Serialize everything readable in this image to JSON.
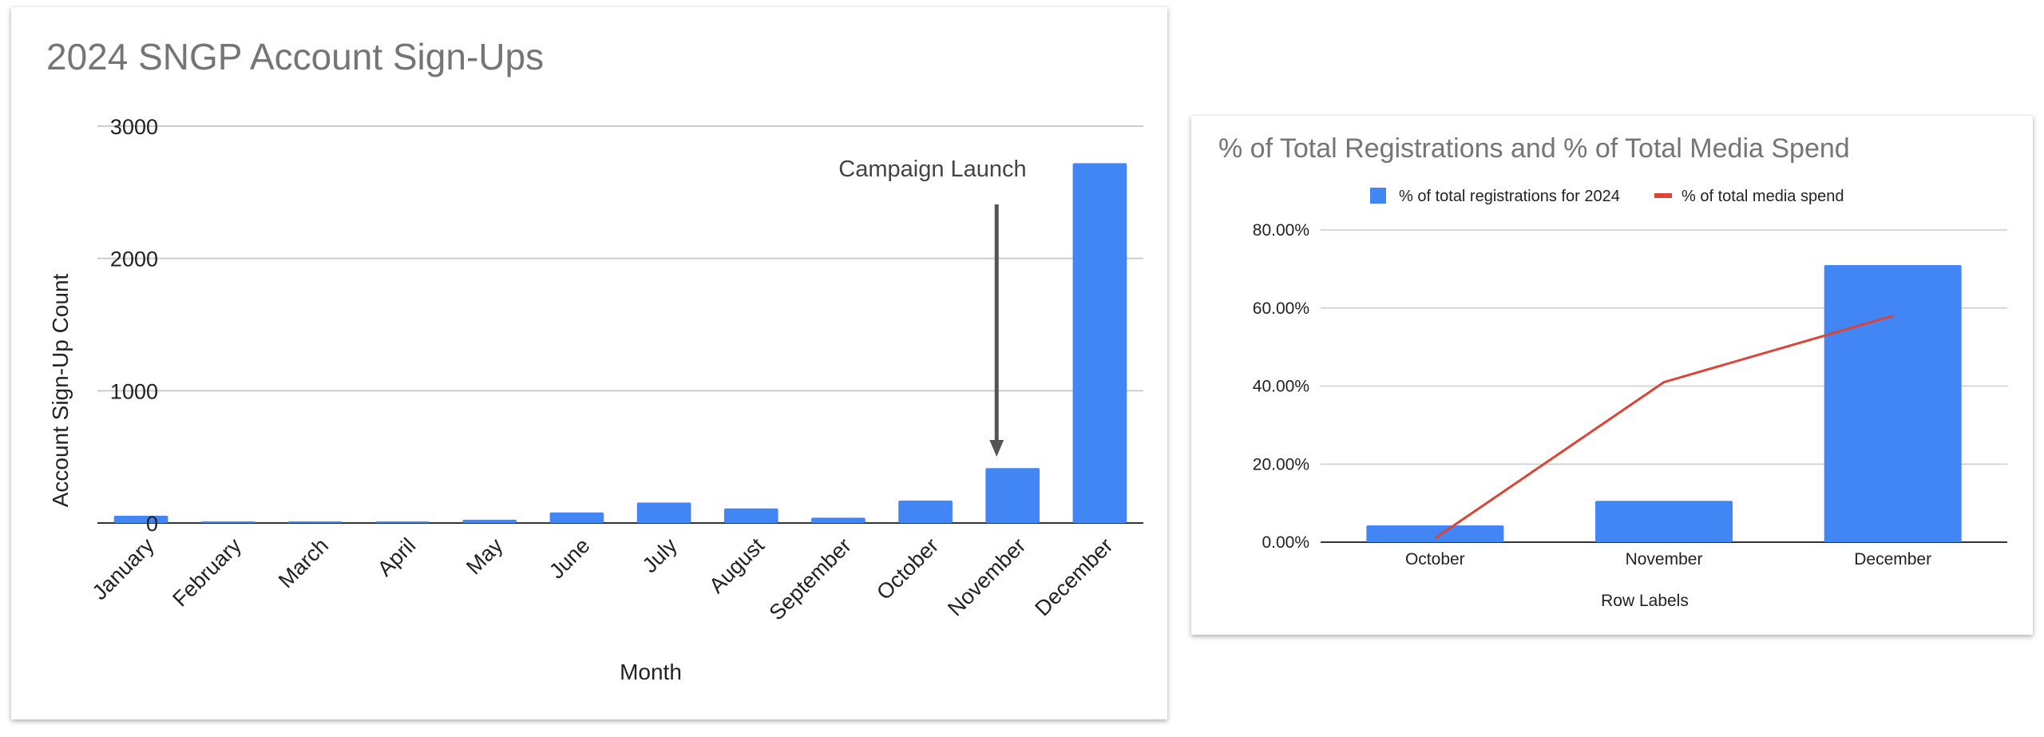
{
  "colors": {
    "bar": "#4285f4",
    "line": "#db4437",
    "grid": "#cccccc",
    "axis": "#333333",
    "annotation_arrow": "#555555"
  },
  "chart_data": [
    {
      "type": "bar",
      "title": "2024 SNGP Account Sign-Ups",
      "xlabel": "Month",
      "ylabel": "Account Sign-Up Count",
      "categories": [
        "January",
        "February",
        "March",
        "April",
        "May",
        "June",
        "July",
        "August",
        "September",
        "October",
        "November",
        "December"
      ],
      "values": [
        55,
        8,
        8,
        3,
        25,
        80,
        155,
        110,
        40,
        170,
        415,
        2720
      ],
      "ylim": [
        0,
        3000
      ],
      "yticks": [
        0,
        1000,
        2000,
        3000
      ],
      "grid": true,
      "annotation": {
        "text": "Campaign Launch",
        "category": "November"
      }
    },
    {
      "type": "bar",
      "title": "% of Total Registrations and % of Total Media Spend",
      "xlabel": "Row Labels",
      "ylabel": "",
      "categories": [
        "October",
        "November",
        "December"
      ],
      "series": [
        {
          "name": "% of total registrations for 2024",
          "type": "bar",
          "values": [
            4.3,
            10.6,
            71.0
          ]
        },
        {
          "name": "% of total media spend",
          "type": "line",
          "values": [
            1.0,
            41.0,
            58.0
          ]
        }
      ],
      "ylim": [
        0,
        80
      ],
      "yticks": [
        "0.00%",
        "20.00%",
        "40.00%",
        "60.00%",
        "80.00%"
      ],
      "grid": true,
      "legend_position": "top"
    }
  ]
}
